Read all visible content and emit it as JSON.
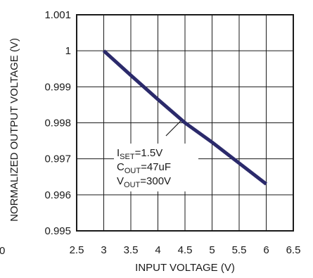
{
  "chart_data": {
    "type": "line",
    "title": "",
    "xlabel": "INPUT VOLTAGE (V)",
    "ylabel": "NORMALIZED OUTPUT VOLTAGE (V)",
    "xlim": [
      2.5,
      6.5
    ],
    "ylim": [
      0.995,
      1.001
    ],
    "x_ticks": [
      2.5,
      3,
      3.5,
      4,
      4.5,
      5,
      5.5,
      6,
      6.5
    ],
    "x_tick_labels": [
      "2.5",
      "3",
      "3.5",
      "4",
      "4.5",
      "5",
      "5.5",
      "6",
      "6.5"
    ],
    "y_ticks": [
      0.995,
      0.996,
      0.997,
      0.998,
      0.999,
      1.0,
      1.001
    ],
    "y_tick_labels": [
      "0.995",
      "0.996",
      "0.997",
      "0.998",
      "0.999",
      "1",
      "1.001"
    ],
    "grid": true,
    "series": [
      {
        "color": "#2b2a6b",
        "x": [
          3.0,
          3.5,
          4.0,
          4.5,
          5.0,
          5.5,
          6.0
        ],
        "y": [
          1.0,
          0.99932,
          0.99865,
          0.998,
          0.99746,
          0.99688,
          0.9963
        ]
      }
    ],
    "annotation": {
      "lines": [
        {
          "main": "I",
          "sub": "SET",
          "rest": "=1.5V"
        },
        {
          "main": "C",
          "sub": "OUT",
          "rest": "=47uF"
        },
        {
          "main": "V",
          "sub": "OUT",
          "rest": "=300V"
        }
      ],
      "pointer_to": {
        "x": 4.42,
        "y": 0.99805
      }
    },
    "clipped_left_label": "0"
  }
}
